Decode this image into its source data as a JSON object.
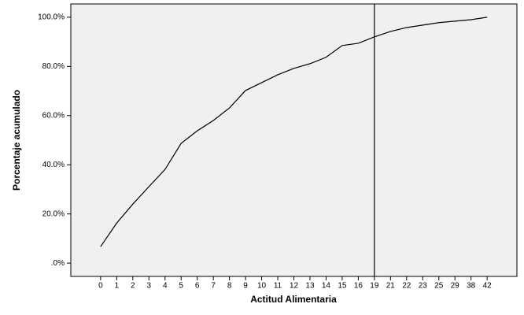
{
  "chart_data": {
    "type": "line",
    "x_label": "Actitud Alimentaria",
    "y_label": "Porcentaje acumulado",
    "categories": [
      "0",
      "1",
      "2",
      "3",
      "4",
      "5",
      "6",
      "7",
      "8",
      "9",
      "10",
      "11",
      "12",
      "13",
      "14",
      "15",
      "16",
      "19",
      "21",
      "22",
      "23",
      "25",
      "29",
      "38",
      "42"
    ],
    "values": [
      6.7,
      16.3,
      24,
      31.1,
      38.1,
      48.7,
      53.8,
      58,
      63.1,
      70.2,
      73.4,
      76.6,
      79.2,
      81.1,
      83.7,
      88.5,
      89.4,
      92,
      94.2,
      95.8,
      96.8,
      97.8,
      98.4,
      99,
      100
    ],
    "color": "#000000",
    "ylim": [
      -5.4,
      105.4
    ],
    "yticks": [
      {
        "value": 0,
        "label": ".0%"
      },
      {
        "value": 20,
        "label": "20.0%"
      },
      {
        "value": 40,
        "label": "40.0%"
      },
      {
        "value": 60,
        "label": "60.0%"
      },
      {
        "value": 80,
        "label": "80.0%"
      },
      {
        "value": 100,
        "label": "100.0%"
      }
    ],
    "reference_x": "19"
  }
}
